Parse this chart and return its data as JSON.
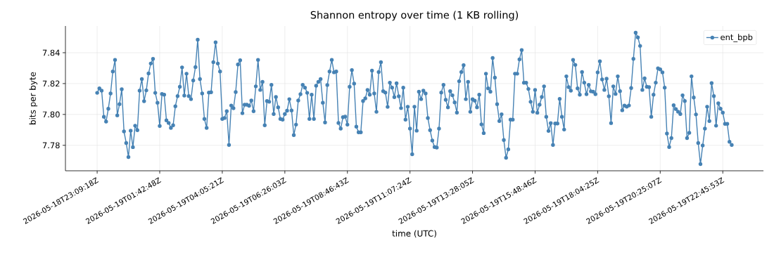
{
  "chart_data": {
    "type": "line",
    "title": "Shannon entropy over time (1 KB rolling)",
    "xlabel": "time (UTC)",
    "ylabel": "bits per byte",
    "categories": [
      "2026-05-18T23:09:18Z",
      null,
      null,
      null,
      null,
      null,
      null,
      null,
      null,
      null,
      null,
      null,
      null,
      null,
      null,
      null,
      null,
      null,
      null,
      null,
      null,
      null,
      null,
      null,
      null,
      null,
      null,
      null,
      "2026-05-19T01:42:48Z",
      null,
      null,
      null,
      null,
      null,
      null,
      null,
      null,
      null,
      null,
      null,
      null,
      null,
      null,
      null,
      null,
      null,
      null,
      null,
      null,
      null,
      null,
      null,
      null,
      null,
      null,
      null,
      "2026-05-19T04:05:21Z",
      null,
      null,
      null,
      null,
      null,
      null,
      null,
      null,
      null,
      null,
      null,
      null,
      null,
      null,
      null,
      null,
      null,
      null,
      null,
      null,
      null,
      null,
      null,
      null,
      null,
      null,
      null,
      "2026-05-19T06:26:03Z",
      null,
      null,
      null,
      null,
      null,
      null,
      null,
      null,
      null,
      null,
      null,
      null,
      null,
      null,
      null,
      null,
      null,
      null,
      null,
      null,
      null,
      null,
      null,
      null,
      null,
      null,
      null,
      "2026-05-19T08:46:43Z",
      null,
      null,
      null,
      null,
      null,
      null,
      null,
      null,
      null,
      null,
      null,
      null,
      null,
      null,
      null,
      null,
      null,
      null,
      null,
      null,
      null,
      null,
      null,
      null,
      null,
      null,
      null,
      "2026-05-19T11:07:24Z",
      null,
      null,
      null,
      null,
      null,
      null,
      null,
      null,
      null,
      null,
      null,
      null,
      null,
      null,
      null,
      null,
      null,
      null,
      null,
      null,
      null,
      null,
      null,
      null,
      null,
      null,
      null,
      "2026-05-19T13:28:05Z",
      null,
      null,
      null,
      null,
      null,
      null,
      null,
      null,
      null,
      null,
      null,
      null,
      null,
      null,
      null,
      null,
      null,
      null,
      null,
      null,
      null,
      null,
      null,
      null,
      null,
      null,
      null,
      "2026-05-19T15:48:46Z",
      null,
      null,
      null,
      null,
      null,
      null,
      null,
      null,
      null,
      null,
      null,
      null,
      null,
      null,
      null,
      null,
      null,
      null,
      null,
      null,
      null,
      null,
      null,
      null,
      null,
      null,
      null,
      "2026-05-19T18:04:25Z",
      null,
      null,
      null,
      null,
      null,
      null,
      null,
      null,
      null,
      null,
      null,
      null,
      null,
      null,
      null,
      null,
      null,
      null,
      null,
      null,
      null,
      null,
      null,
      null,
      null,
      null,
      null,
      "2026-05-19T20:25:07Z",
      null,
      null,
      null,
      null,
      null,
      null,
      null,
      null,
      null,
      null,
      null,
      null,
      null,
      null,
      null,
      null,
      null,
      null,
      null,
      null,
      null,
      null,
      null,
      null,
      null,
      null,
      null,
      "2026-05-19T22:45:53Z",
      null,
      null,
      null,
      null
    ],
    "series": [
      {
        "name": "ent_bpb",
        "color": "#4682b4",
        "values": [
          7.814,
          7.8169,
          7.8154,
          7.7985,
          7.7954,
          7.8037,
          7.8136,
          7.8278,
          7.8353,
          7.7994,
          7.8067,
          7.8163,
          7.789,
          7.7815,
          7.7724,
          7.7895,
          7.7788,
          7.7927,
          7.7898,
          7.8154,
          7.8229,
          7.8086,
          7.8156,
          7.8266,
          7.833,
          7.836,
          7.814,
          7.8076,
          7.7925,
          7.8133,
          7.8128,
          7.7962,
          7.7945,
          7.7913,
          7.793,
          7.8053,
          7.8119,
          7.8179,
          7.8305,
          7.8122,
          7.8264,
          7.8119,
          7.8099,
          7.822,
          7.8307,
          7.8484,
          7.8229,
          7.8136,
          7.7971,
          7.7913,
          7.8142,
          7.8144,
          7.8339,
          7.8467,
          7.833,
          7.8278,
          7.7971,
          7.7977,
          7.8021,
          7.7802,
          7.8058,
          7.804,
          7.8145,
          7.8324,
          7.8351,
          7.8008,
          7.8063,
          7.8063,
          7.8056,
          7.809,
          7.8021,
          7.8182,
          7.8353,
          7.8159,
          7.8211,
          7.793,
          7.8087,
          7.8082,
          7.8192,
          7.8003,
          7.8113,
          7.8046,
          7.7971,
          7.7966,
          7.8003,
          7.8024,
          7.8099,
          7.8026,
          7.7866,
          7.7934,
          7.809,
          7.8131,
          7.8192,
          7.8174,
          7.814,
          7.7971,
          7.8128,
          7.7971,
          7.8186,
          7.8211,
          7.8229,
          7.8076,
          7.7948,
          7.8191,
          7.8278,
          7.8353,
          7.8273,
          7.8278,
          7.7945,
          7.7908,
          7.7982,
          7.7986,
          7.7934,
          7.8179,
          7.8287,
          7.82,
          7.7921,
          7.7884,
          7.7884,
          7.8087,
          7.8104,
          7.8159,
          7.8128,
          7.8284,
          7.8136,
          7.8017,
          7.8275,
          7.8339,
          7.8151,
          7.8142,
          7.8049,
          7.8206,
          7.8174,
          7.8112,
          7.8202,
          7.8118,
          7.8041,
          7.8174,
          7.7966,
          7.805,
          7.7908,
          7.7742,
          7.805,
          7.7895,
          7.8147,
          7.8099,
          7.8154,
          7.8136,
          7.7977,
          7.7898,
          7.7831,
          7.7789,
          7.7785,
          7.7908,
          7.8142,
          7.8192,
          7.8095,
          7.8046,
          7.8151,
          7.8124,
          7.8078,
          7.8012,
          7.8215,
          7.8275,
          7.8319,
          7.8099,
          7.8211,
          7.8017,
          7.8098,
          7.8089,
          7.8046,
          7.8128,
          7.7936,
          7.7879,
          7.8264,
          7.8169,
          7.8147,
          7.8366,
          7.8238,
          7.8067,
          7.7957,
          7.8001,
          7.7834,
          7.7719,
          7.7774,
          7.7966,
          7.7966,
          7.8264,
          7.8264,
          7.8357,
          7.8417,
          7.8205,
          7.8205,
          7.8165,
          7.8082,
          7.8017,
          7.8159,
          7.8011,
          7.8063,
          7.8113,
          7.8182,
          7.7985,
          7.7893,
          7.7944,
          7.7802,
          7.7941,
          7.7941,
          7.8101,
          7.7985,
          7.7902,
          7.8247,
          7.8177,
          7.8154,
          7.8353,
          7.8321,
          7.8169,
          7.8128,
          7.8275,
          7.8206,
          7.8131,
          7.8192,
          7.815,
          7.8147,
          7.8131,
          7.8273,
          7.8344,
          7.8227,
          7.8159,
          7.8232,
          7.8118,
          7.7944,
          7.8182,
          7.8133,
          7.8247,
          7.8151,
          7.8027,
          7.8058,
          7.805,
          7.8058,
          7.8171,
          7.836,
          7.853,
          7.8499,
          7.8444,
          7.8159,
          7.8234,
          7.8179,
          7.8177,
          7.7985,
          7.8128,
          7.8206,
          7.8299,
          7.8292,
          7.8273,
          7.8174,
          7.7876,
          7.7789,
          7.7847,
          7.806,
          7.8035,
          7.8018,
          7.8003,
          7.8124,
          7.8087,
          7.7847,
          7.7881,
          7.8247,
          7.811,
          7.8,
          7.7815,
          7.7678,
          7.7799,
          7.7908,
          7.805,
          7.7957,
          7.8203,
          7.8119,
          7.7927,
          7.8072,
          7.8037,
          7.8012,
          7.7939,
          7.7939,
          7.7823,
          7.7802
        ]
      }
    ],
    "ylim": [
      7.7635,
      7.8573
    ],
    "yticks": [
      7.78,
      {
        "value": 7.8,
        "label": "7.80"
      },
      7.82,
      7.84
    ],
    "grid": true,
    "legend": "top right",
    "marker": "circle"
  }
}
